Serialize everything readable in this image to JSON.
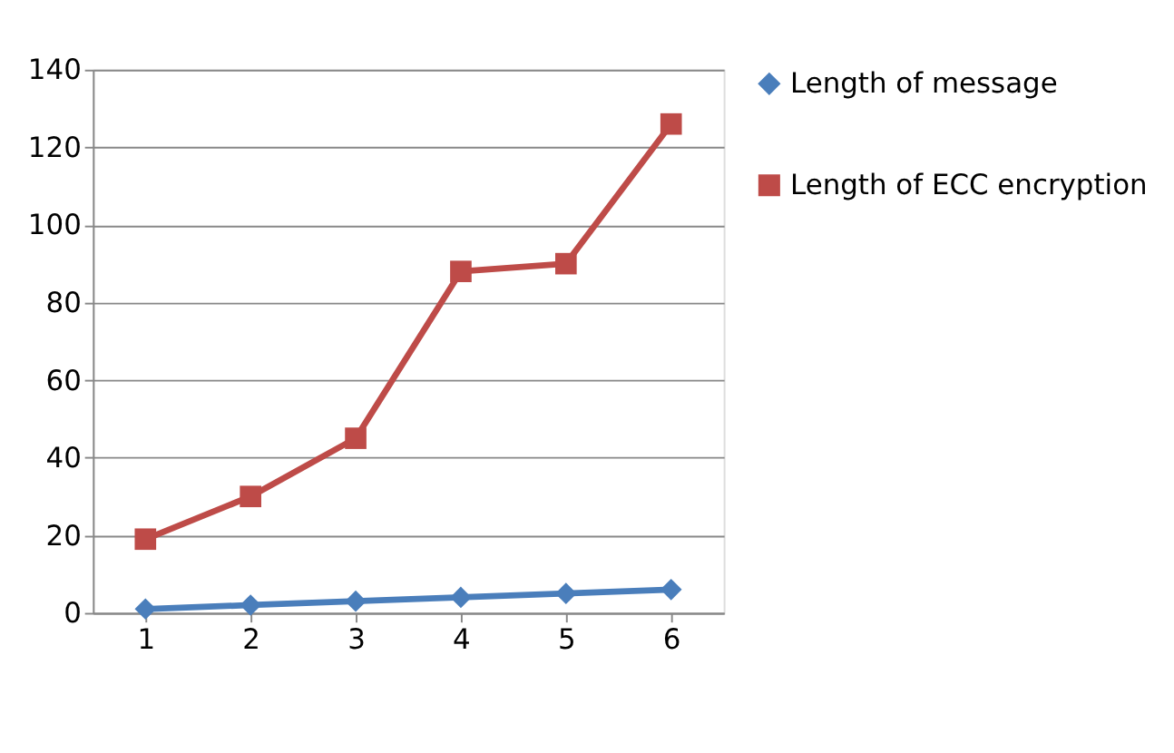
{
  "chart_data": {
    "type": "line",
    "categories": [
      "1",
      "2",
      "3",
      "4",
      "5",
      "6"
    ],
    "series": [
      {
        "name": "Length of message",
        "color": "#4a7ebb",
        "marker": "diamond",
        "values": [
          1,
          2,
          3,
          4,
          5,
          6
        ]
      },
      {
        "name": "Length of ECC encryption",
        "color": "#be4b48",
        "marker": "square",
        "values": [
          19,
          30,
          45,
          88,
          90,
          126
        ]
      }
    ],
    "ylim": [
      0,
      140
    ],
    "yticks": [
      0,
      20,
      40,
      60,
      80,
      100,
      120,
      140
    ],
    "grid": "y",
    "legend": "right"
  }
}
